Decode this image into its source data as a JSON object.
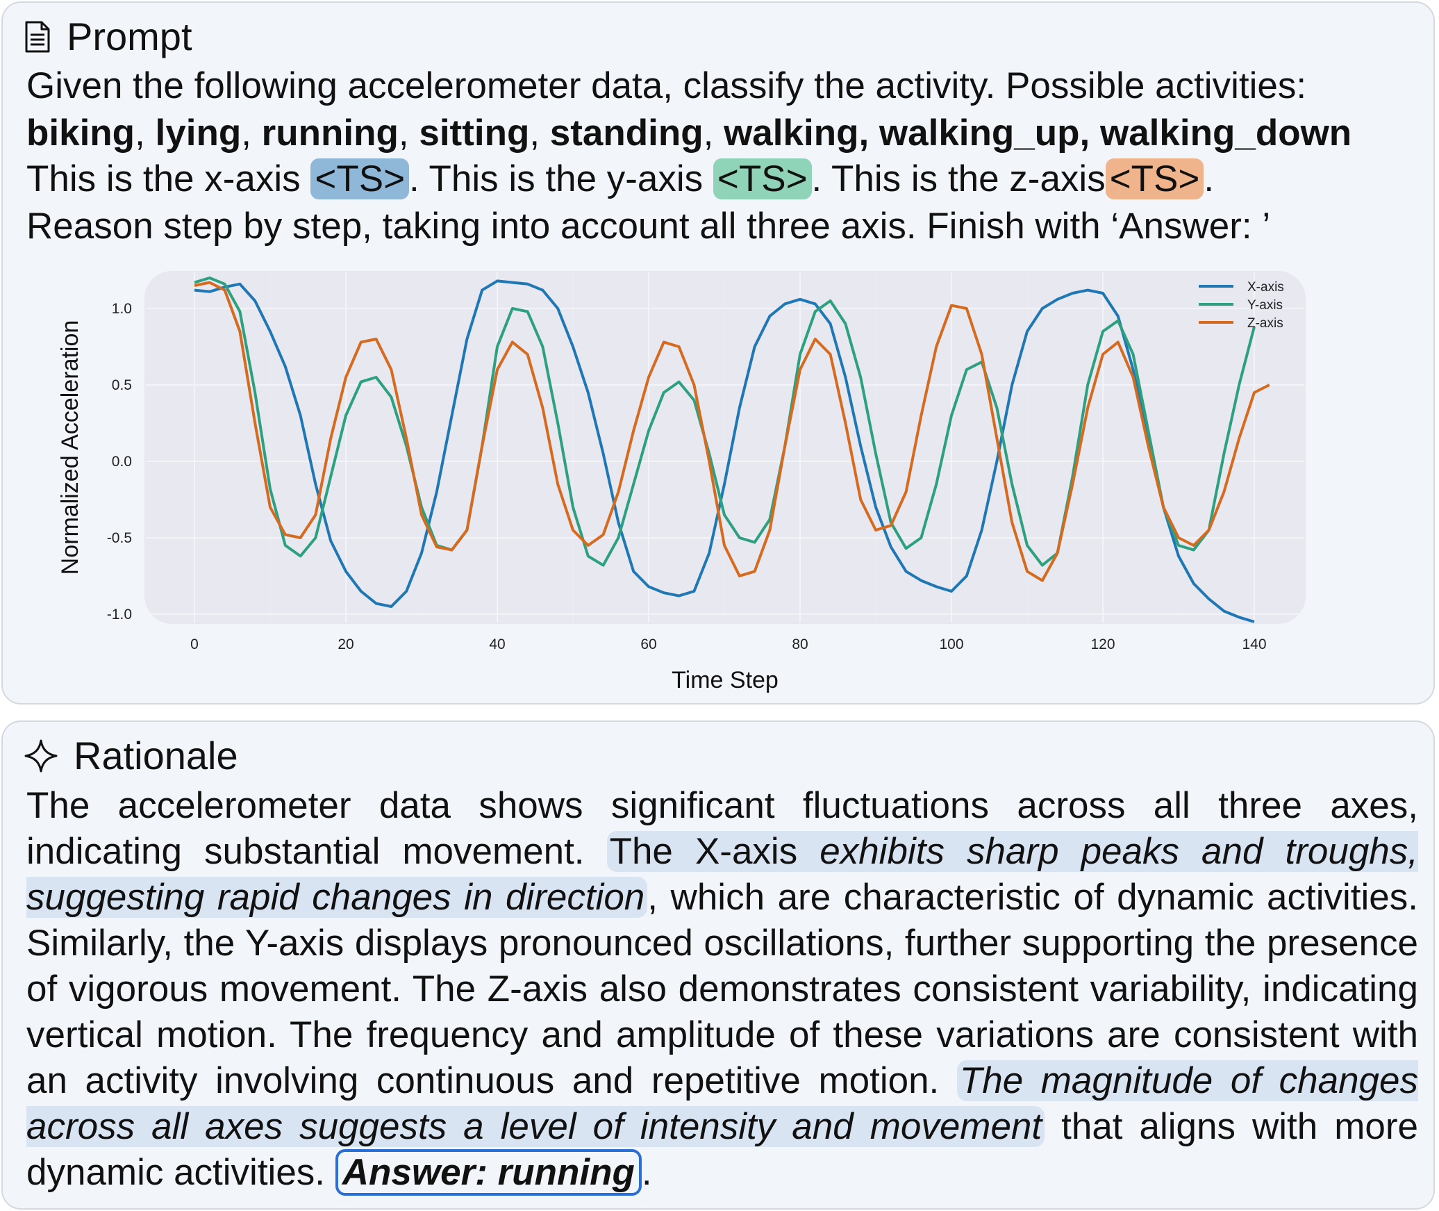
{
  "prompt": {
    "title": "Prompt",
    "line1": "Given the following accelerometer data, classify the activity. Possible activities:",
    "activities": [
      "biking",
      "lying",
      "running",
      "sitting",
      "standing",
      "walking",
      "walking_up",
      "walking_down"
    ],
    "ts_x_pre": "This is the x-axis ",
    "ts_token": "<TS>",
    "ts_y_pre": ". This is the y-axis ",
    "ts_z_pre": ". This is the z-axis",
    "ts_end": ".",
    "line4": "Reason step by step, taking into account all three axis. Finish with ‘Answer: ’",
    "ts_colors": {
      "x": "#8fb8d8",
      "y": "#8fd3b8",
      "z": "#f0b48c"
    }
  },
  "chart_data": {
    "type": "line",
    "xlabel": "Time Step",
    "ylabel": "Normalized Acceleration",
    "xlim": [
      0,
      140
    ],
    "ylim": [
      -1.0,
      1.0
    ],
    "xticks": [
      0,
      20,
      40,
      60,
      80,
      100,
      120,
      140
    ],
    "yticks": [
      1.0,
      0.5,
      0.0,
      -0.5,
      -1.0
    ],
    "ytick_labels": [
      "1.0",
      "0.5",
      "0.0",
      "-0.5",
      "-1.0"
    ],
    "legend_position": "top-right",
    "grid": true,
    "series": [
      {
        "name": "X-axis",
        "color": "#1f77b4",
        "points": [
          [
            0,
            1.12
          ],
          [
            2,
            1.11
          ],
          [
            4,
            1.14
          ],
          [
            6,
            1.16
          ],
          [
            8,
            1.05
          ],
          [
            10,
            0.85
          ],
          [
            12,
            0.62
          ],
          [
            14,
            0.3
          ],
          [
            16,
            -0.15
          ],
          [
            18,
            -0.52
          ],
          [
            20,
            -0.72
          ],
          [
            22,
            -0.85
          ],
          [
            24,
            -0.93
          ],
          [
            26,
            -0.95
          ],
          [
            28,
            -0.85
          ],
          [
            30,
            -0.6
          ],
          [
            32,
            -0.2
          ],
          [
            34,
            0.3
          ],
          [
            36,
            0.8
          ],
          [
            38,
            1.12
          ],
          [
            40,
            1.18
          ],
          [
            42,
            1.17
          ],
          [
            44,
            1.16
          ],
          [
            46,
            1.12
          ],
          [
            48,
            1.0
          ],
          [
            50,
            0.75
          ],
          [
            52,
            0.45
          ],
          [
            54,
            0.05
          ],
          [
            56,
            -0.4
          ],
          [
            58,
            -0.72
          ],
          [
            60,
            -0.82
          ],
          [
            62,
            -0.86
          ],
          [
            64,
            -0.88
          ],
          [
            66,
            -0.85
          ],
          [
            68,
            -0.6
          ],
          [
            70,
            -0.15
          ],
          [
            72,
            0.35
          ],
          [
            74,
            0.75
          ],
          [
            76,
            0.95
          ],
          [
            78,
            1.03
          ],
          [
            80,
            1.06
          ],
          [
            82,
            1.03
          ],
          [
            84,
            0.9
          ],
          [
            86,
            0.55
          ],
          [
            88,
            0.1
          ],
          [
            90,
            -0.3
          ],
          [
            92,
            -0.56
          ],
          [
            94,
            -0.72
          ],
          [
            96,
            -0.78
          ],
          [
            98,
            -0.82
          ],
          [
            100,
            -0.85
          ],
          [
            102,
            -0.75
          ],
          [
            104,
            -0.45
          ],
          [
            106,
            0.0
          ],
          [
            108,
            0.5
          ],
          [
            110,
            0.85
          ],
          [
            112,
            1.0
          ],
          [
            114,
            1.06
          ],
          [
            116,
            1.1
          ],
          [
            118,
            1.12
          ],
          [
            120,
            1.1
          ],
          [
            122,
            0.95
          ],
          [
            124,
            0.6
          ],
          [
            126,
            0.15
          ],
          [
            128,
            -0.3
          ],
          [
            130,
            -0.62
          ],
          [
            132,
            -0.8
          ],
          [
            134,
            -0.9
          ],
          [
            136,
            -0.98
          ],
          [
            138,
            -1.02
          ],
          [
            140,
            -1.05
          ]
        ]
      },
      {
        "name": "Y-axis",
        "color": "#2ca07f",
        "points": [
          [
            0,
            1.17
          ],
          [
            2,
            1.2
          ],
          [
            4,
            1.16
          ],
          [
            6,
            0.98
          ],
          [
            8,
            0.45
          ],
          [
            10,
            -0.18
          ],
          [
            12,
            -0.55
          ],
          [
            14,
            -0.62
          ],
          [
            16,
            -0.5
          ],
          [
            18,
            -0.1
          ],
          [
            20,
            0.3
          ],
          [
            22,
            0.52
          ],
          [
            24,
            0.55
          ],
          [
            26,
            0.42
          ],
          [
            28,
            0.1
          ],
          [
            30,
            -0.3
          ],
          [
            32,
            -0.55
          ],
          [
            34,
            -0.58
          ],
          [
            36,
            -0.45
          ],
          [
            38,
            0.1
          ],
          [
            40,
            0.75
          ],
          [
            42,
            1.0
          ],
          [
            44,
            0.98
          ],
          [
            46,
            0.75
          ],
          [
            48,
            0.25
          ],
          [
            50,
            -0.3
          ],
          [
            52,
            -0.62
          ],
          [
            54,
            -0.68
          ],
          [
            56,
            -0.5
          ],
          [
            58,
            -0.15
          ],
          [
            60,
            0.2
          ],
          [
            62,
            0.45
          ],
          [
            64,
            0.52
          ],
          [
            66,
            0.4
          ],
          [
            68,
            0.05
          ],
          [
            70,
            -0.35
          ],
          [
            72,
            -0.5
          ],
          [
            74,
            -0.53
          ],
          [
            76,
            -0.38
          ],
          [
            78,
            0.1
          ],
          [
            80,
            0.7
          ],
          [
            82,
            0.98
          ],
          [
            84,
            1.05
          ],
          [
            86,
            0.9
          ],
          [
            88,
            0.55
          ],
          [
            90,
            0.05
          ],
          [
            92,
            -0.4
          ],
          [
            94,
            -0.57
          ],
          [
            96,
            -0.5
          ],
          [
            98,
            -0.15
          ],
          [
            100,
            0.3
          ],
          [
            102,
            0.6
          ],
          [
            104,
            0.65
          ],
          [
            106,
            0.35
          ],
          [
            108,
            -0.15
          ],
          [
            110,
            -0.55
          ],
          [
            112,
            -0.68
          ],
          [
            114,
            -0.6
          ],
          [
            116,
            -0.1
          ],
          [
            118,
            0.5
          ],
          [
            120,
            0.85
          ],
          [
            122,
            0.92
          ],
          [
            124,
            0.7
          ],
          [
            126,
            0.2
          ],
          [
            128,
            -0.3
          ],
          [
            130,
            -0.55
          ],
          [
            132,
            -0.58
          ],
          [
            134,
            -0.45
          ],
          [
            136,
            0.05
          ],
          [
            138,
            0.5
          ],
          [
            140,
            0.88
          ]
        ]
      },
      {
        "name": "Z-axis",
        "color": "#d66a1f",
        "points": [
          [
            0,
            1.15
          ],
          [
            2,
            1.17
          ],
          [
            4,
            1.12
          ],
          [
            6,
            0.85
          ],
          [
            8,
            0.25
          ],
          [
            10,
            -0.3
          ],
          [
            12,
            -0.48
          ],
          [
            14,
            -0.5
          ],
          [
            16,
            -0.35
          ],
          [
            18,
            0.15
          ],
          [
            20,
            0.55
          ],
          [
            22,
            0.78
          ],
          [
            24,
            0.8
          ],
          [
            26,
            0.6
          ],
          [
            28,
            0.15
          ],
          [
            30,
            -0.35
          ],
          [
            32,
            -0.56
          ],
          [
            34,
            -0.58
          ],
          [
            36,
            -0.45
          ],
          [
            38,
            0.1
          ],
          [
            40,
            0.6
          ],
          [
            42,
            0.78
          ],
          [
            44,
            0.7
          ],
          [
            46,
            0.35
          ],
          [
            48,
            -0.15
          ],
          [
            50,
            -0.45
          ],
          [
            52,
            -0.55
          ],
          [
            54,
            -0.48
          ],
          [
            56,
            -0.2
          ],
          [
            58,
            0.2
          ],
          [
            60,
            0.55
          ],
          [
            62,
            0.78
          ],
          [
            64,
            0.75
          ],
          [
            66,
            0.5
          ],
          [
            68,
            0.0
          ],
          [
            70,
            -0.55
          ],
          [
            72,
            -0.75
          ],
          [
            74,
            -0.72
          ],
          [
            76,
            -0.45
          ],
          [
            78,
            0.1
          ],
          [
            80,
            0.6
          ],
          [
            82,
            0.8
          ],
          [
            84,
            0.7
          ],
          [
            86,
            0.25
          ],
          [
            88,
            -0.25
          ],
          [
            90,
            -0.45
          ],
          [
            92,
            -0.42
          ],
          [
            94,
            -0.2
          ],
          [
            96,
            0.3
          ],
          [
            98,
            0.75
          ],
          [
            100,
            1.02
          ],
          [
            102,
            1.0
          ],
          [
            104,
            0.7
          ],
          [
            106,
            0.15
          ],
          [
            108,
            -0.4
          ],
          [
            110,
            -0.72
          ],
          [
            112,
            -0.78
          ],
          [
            114,
            -0.6
          ],
          [
            116,
            -0.15
          ],
          [
            118,
            0.35
          ],
          [
            120,
            0.7
          ],
          [
            122,
            0.78
          ],
          [
            124,
            0.55
          ],
          [
            126,
            0.1
          ],
          [
            128,
            -0.3
          ],
          [
            130,
            -0.5
          ],
          [
            132,
            -0.55
          ],
          [
            134,
            -0.45
          ],
          [
            136,
            -0.2
          ],
          [
            138,
            0.15
          ],
          [
            140,
            0.45
          ],
          [
            142,
            0.5
          ]
        ]
      }
    ]
  },
  "rationale": {
    "title": "Rationale",
    "p1": "The accelerometer data shows significant fluctuations across all three axes, indicating substantial movement. ",
    "hl1_upright": "The X-axis ",
    "hl1_italic": "exhibits sharp peaks and troughs, suggesting rapid changes in direction",
    "p2": ", which are characteristic of dynamic activities. Similarly, the Y-axis displays pronounced oscillations, further supporting the presence of vigorous movement. The Z-axis also demonstrates consistent variability, indicating vertical motion. The frequency and amplitude of these variations are consistent with an activity involving continuous and repetitive motion. ",
    "hl2_italic": "The magnitude of changes across all axes suggests a level of intensity and movement",
    "p3": " that aligns with more dynamic activities. ",
    "answer": "Answer: running",
    "p4": "."
  }
}
